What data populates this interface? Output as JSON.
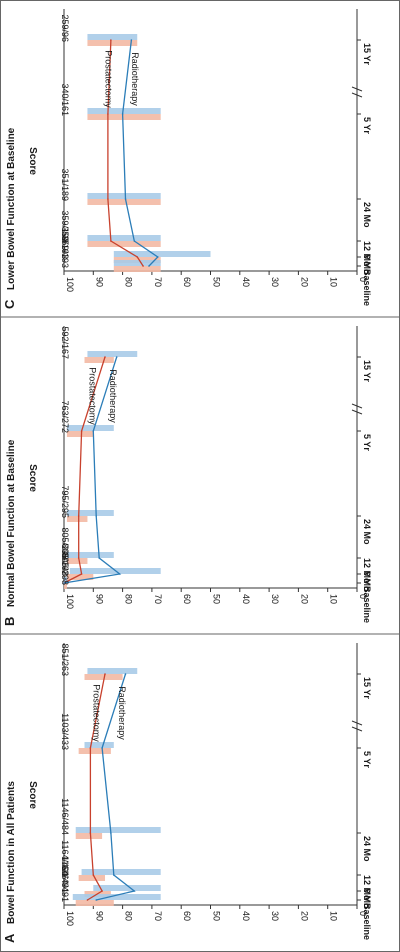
{
  "chart_data": [
    {
      "type": "line",
      "panel_letter": "A",
      "title": "Bowel Function in All Patients",
      "ylabel": "Score",
      "ylim": [
        0,
        100
      ],
      "yticks": [
        0,
        10,
        20,
        30,
        40,
        50,
        60,
        70,
        80,
        90,
        100
      ],
      "categories": [
        "Baseline",
        "6 Mo",
        "12 Mo",
        "24 Mo",
        "5 Yr",
        "15 Yr"
      ],
      "counts": [
        "1164/491",
        "1164/491",
        "1164/491",
        "1146/484",
        "1103/433",
        "851/263"
      ],
      "series": [
        {
          "name": "Prostatectomy",
          "color": "#c8412d",
          "values": [
            92,
            87,
            90,
            91,
            91,
            86
          ],
          "ci_low": [
            83,
            84,
            86,
            87,
            84,
            80
          ],
          "ci_high": [
            96,
            93,
            95,
            96,
            95,
            93
          ]
        },
        {
          "name": "Radiotherapy",
          "color": "#2b7db8",
          "values": [
            89,
            76,
            83,
            84,
            87,
            79
          ],
          "ci_low": [
            67,
            67,
            67,
            67,
            83,
            75
          ],
          "ci_high": [
            97,
            90,
            94,
            96,
            93,
            92
          ]
        }
      ]
    },
    {
      "type": "line",
      "panel_letter": "B",
      "title": "Normal Bowel Function at Baseline",
      "ylabel": "Score",
      "ylim": [
        0,
        100
      ],
      "yticks": [
        0,
        10,
        20,
        30,
        40,
        50,
        60,
        70,
        80,
        90,
        100
      ],
      "categories": [
        "Baseline",
        "6 Mo",
        "12 Mo",
        "24 Mo",
        "5 Yr",
        "15 Yr"
      ],
      "counts": [
        "805/298",
        "805/298",
        "805/298",
        "795/295",
        "763/272",
        "592/167"
      ],
      "series": [
        {
          "name": "Prostatectomy",
          "color": "#c8412d",
          "values": [
            100,
            94,
            95,
            95,
            94,
            86
          ],
          "ci_low": [
            99,
            90,
            92,
            92,
            90,
            83
          ],
          "ci_high": [
            100,
            99,
            99,
            99,
            99,
            93
          ]
        },
        {
          "name": "Radiotherapy",
          "color": "#2b7db8",
          "values": [
            100,
            81,
            88,
            89,
            90,
            82
          ],
          "ci_low": [
            99,
            67,
            83,
            83,
            83,
            75
          ],
          "ci_high": [
            100,
            98,
            99,
            99,
            99,
            92
          ]
        }
      ]
    },
    {
      "type": "line",
      "panel_letter": "C",
      "title": "Lower Bowel Function at Baseline",
      "ylabel": "Score",
      "ylim": [
        0,
        100
      ],
      "yticks": [
        0,
        10,
        20,
        30,
        40,
        50,
        60,
        70,
        80,
        90,
        100
      ],
      "categories": [
        "Baseline",
        "6 Mo",
        "12 Mo",
        "24 Mo",
        "5 Yr",
        "15 Yr"
      ],
      "counts": [
        "359/193",
        "359/193",
        "359/193",
        "351/189",
        "340/161",
        "259/96"
      ],
      "series": [
        {
          "name": "Prostatectomy",
          "color": "#c8412d",
          "values": [
            73,
            75,
            84,
            85,
            85,
            84
          ],
          "ci_low": [
            67,
            67,
            67,
            67,
            67,
            75
          ],
          "ci_high": [
            83,
            83,
            92,
            92,
            92,
            92
          ]
        },
        {
          "name": "Radiotherapy",
          "color": "#2b7db8",
          "values": [
            71,
            68,
            76,
            79,
            80,
            77
          ],
          "ci_low": [
            67,
            50,
            67,
            67,
            67,
            75
          ],
          "ci_high": [
            83,
            83,
            92,
            92,
            92,
            92
          ]
        }
      ]
    }
  ]
}
